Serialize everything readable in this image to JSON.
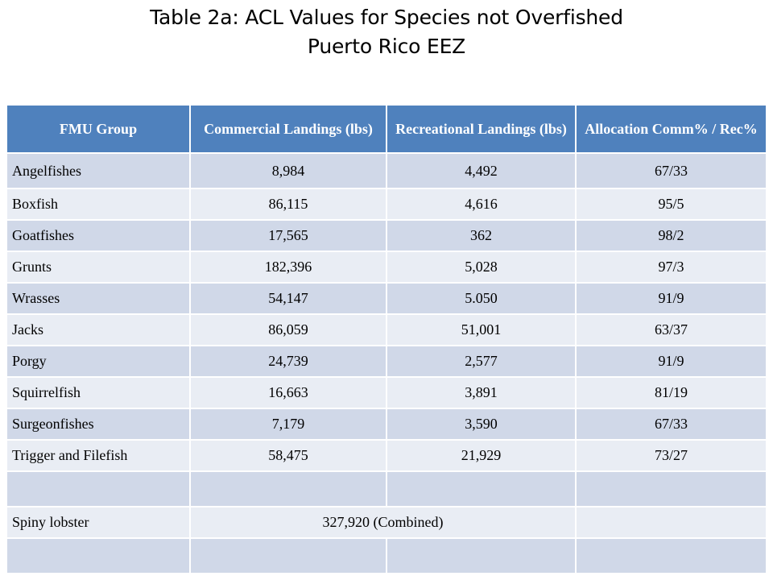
{
  "title": {
    "line1": "Table 2a:  ACL Values for Species not Overfished",
    "line2": "Puerto Rico EEZ"
  },
  "table": {
    "headers": {
      "fmu": "FMU Group",
      "commercial": "Commercial Landings (lbs)",
      "recreational": "Recreational Landings (lbs)",
      "allocation": "Allocation Comm% / Rec%"
    },
    "rows": [
      {
        "group": "Angelfishes",
        "commercial": "8,984",
        "recreational": "4,492",
        "allocation": "67/33"
      },
      {
        "group": "Boxfish",
        "commercial": "86,115",
        "recreational": "4,616",
        "allocation": "95/5"
      },
      {
        "group": "Goatfishes",
        "commercial": "17,565",
        "recreational": "362",
        "allocation": "98/2"
      },
      {
        "group": "Grunts",
        "commercial": "182,396",
        "recreational": "5,028",
        "allocation": "97/3"
      },
      {
        "group": "Wrasses",
        "commercial": "54,147",
        "recreational": "5.050",
        "allocation": "91/9"
      },
      {
        "group": "Jacks",
        "commercial": "86,059",
        "recreational": "51,001",
        "allocation": "63/37"
      },
      {
        "group": "Porgy",
        "commercial": "24,739",
        "recreational": "2,577",
        "allocation": "91/9"
      },
      {
        "group": "Squirrelfish",
        "commercial": "16,663",
        "recreational": "3,891",
        "allocation": "81/19"
      },
      {
        "group": "Surgeonfishes",
        "commercial": "7,179",
        "recreational": "3,590",
        "allocation": "67/33"
      },
      {
        "group": "Trigger and Filefish",
        "commercial": "58,475",
        "recreational": "21,929",
        "allocation": "73/27"
      }
    ],
    "spiny_lobster": {
      "group": "Spiny lobster",
      "combined": "327,920 (Combined)"
    }
  }
}
